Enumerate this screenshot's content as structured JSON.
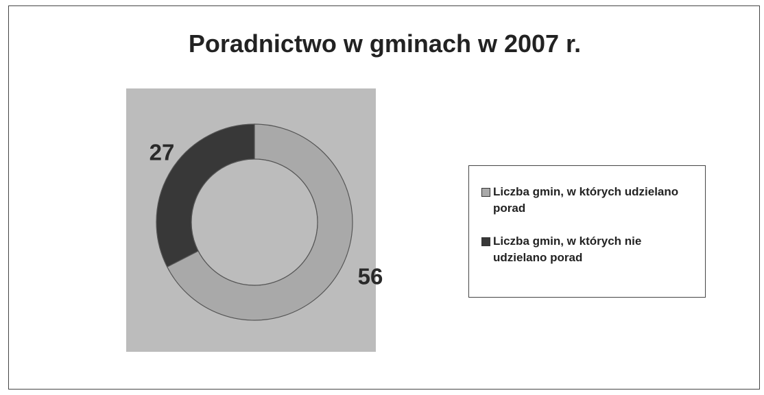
{
  "chart_data": {
    "type": "donut",
    "title": "Poradnictwo w gminach w 2007 r.",
    "categories": [
      "Liczba gmin, w których udzielano porad",
      "Liczba gmin, w których nie udzielano porad"
    ],
    "values": [
      56,
      27
    ],
    "colors": [
      "#a9a9a9",
      "#383838"
    ]
  }
}
